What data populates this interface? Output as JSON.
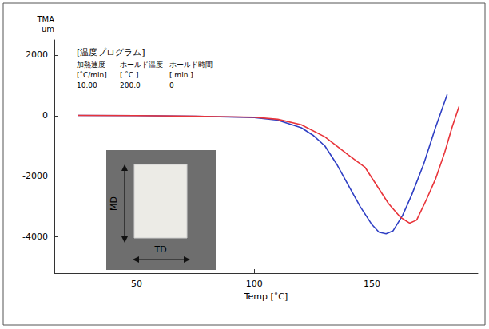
{
  "chart_data": {
    "type": "line",
    "x_label": "Temp [˚C]",
    "y_label": [
      "TMA",
      "um"
    ],
    "xlim": [
      15,
      195
    ],
    "xticks": [
      50,
      100,
      150
    ],
    "ylim": [
      -5200,
      2500
    ],
    "yticks": [
      -4000,
      -2000,
      0,
      2000
    ],
    "grid": false,
    "series": [
      {
        "color": "#2f3fc4",
        "x": [
          25,
          50,
          75,
          100,
          110,
          120,
          125,
          130,
          135,
          140,
          145,
          150,
          153,
          156,
          159,
          163,
          167,
          172,
          177,
          182
        ],
        "values": [
          10,
          0,
          -20,
          -60,
          -150,
          -400,
          -650,
          -1000,
          -1600,
          -2300,
          -3000,
          -3600,
          -3850,
          -3900,
          -3800,
          -3300,
          -2600,
          -1600,
          -400,
          700
        ]
      },
      {
        "color": "#e8343a",
        "x": [
          25,
          50,
          75,
          100,
          110,
          120,
          130,
          140,
          147,
          152,
          157,
          162,
          166,
          169,
          173,
          177,
          181,
          184,
          187
        ],
        "values": [
          10,
          0,
          -20,
          -50,
          -120,
          -300,
          -700,
          -1300,
          -1700,
          -2300,
          -2900,
          -3350,
          -3550,
          -3450,
          -2800,
          -2100,
          -1200,
          -400,
          300
        ]
      }
    ],
    "annotations": {
      "program": {
        "title": "[温度プログラム]",
        "headers": [
          "加熱速度",
          "ホールド温度",
          "ホールド時間"
        ],
        "units": [
          "[˚C/min]",
          "[ ˚C ]",
          "[ min ]"
        ],
        "values": [
          "10.00",
          "200.0",
          "0"
        ]
      },
      "inset": {
        "labels": [
          "MD",
          "TD"
        ]
      }
    }
  }
}
